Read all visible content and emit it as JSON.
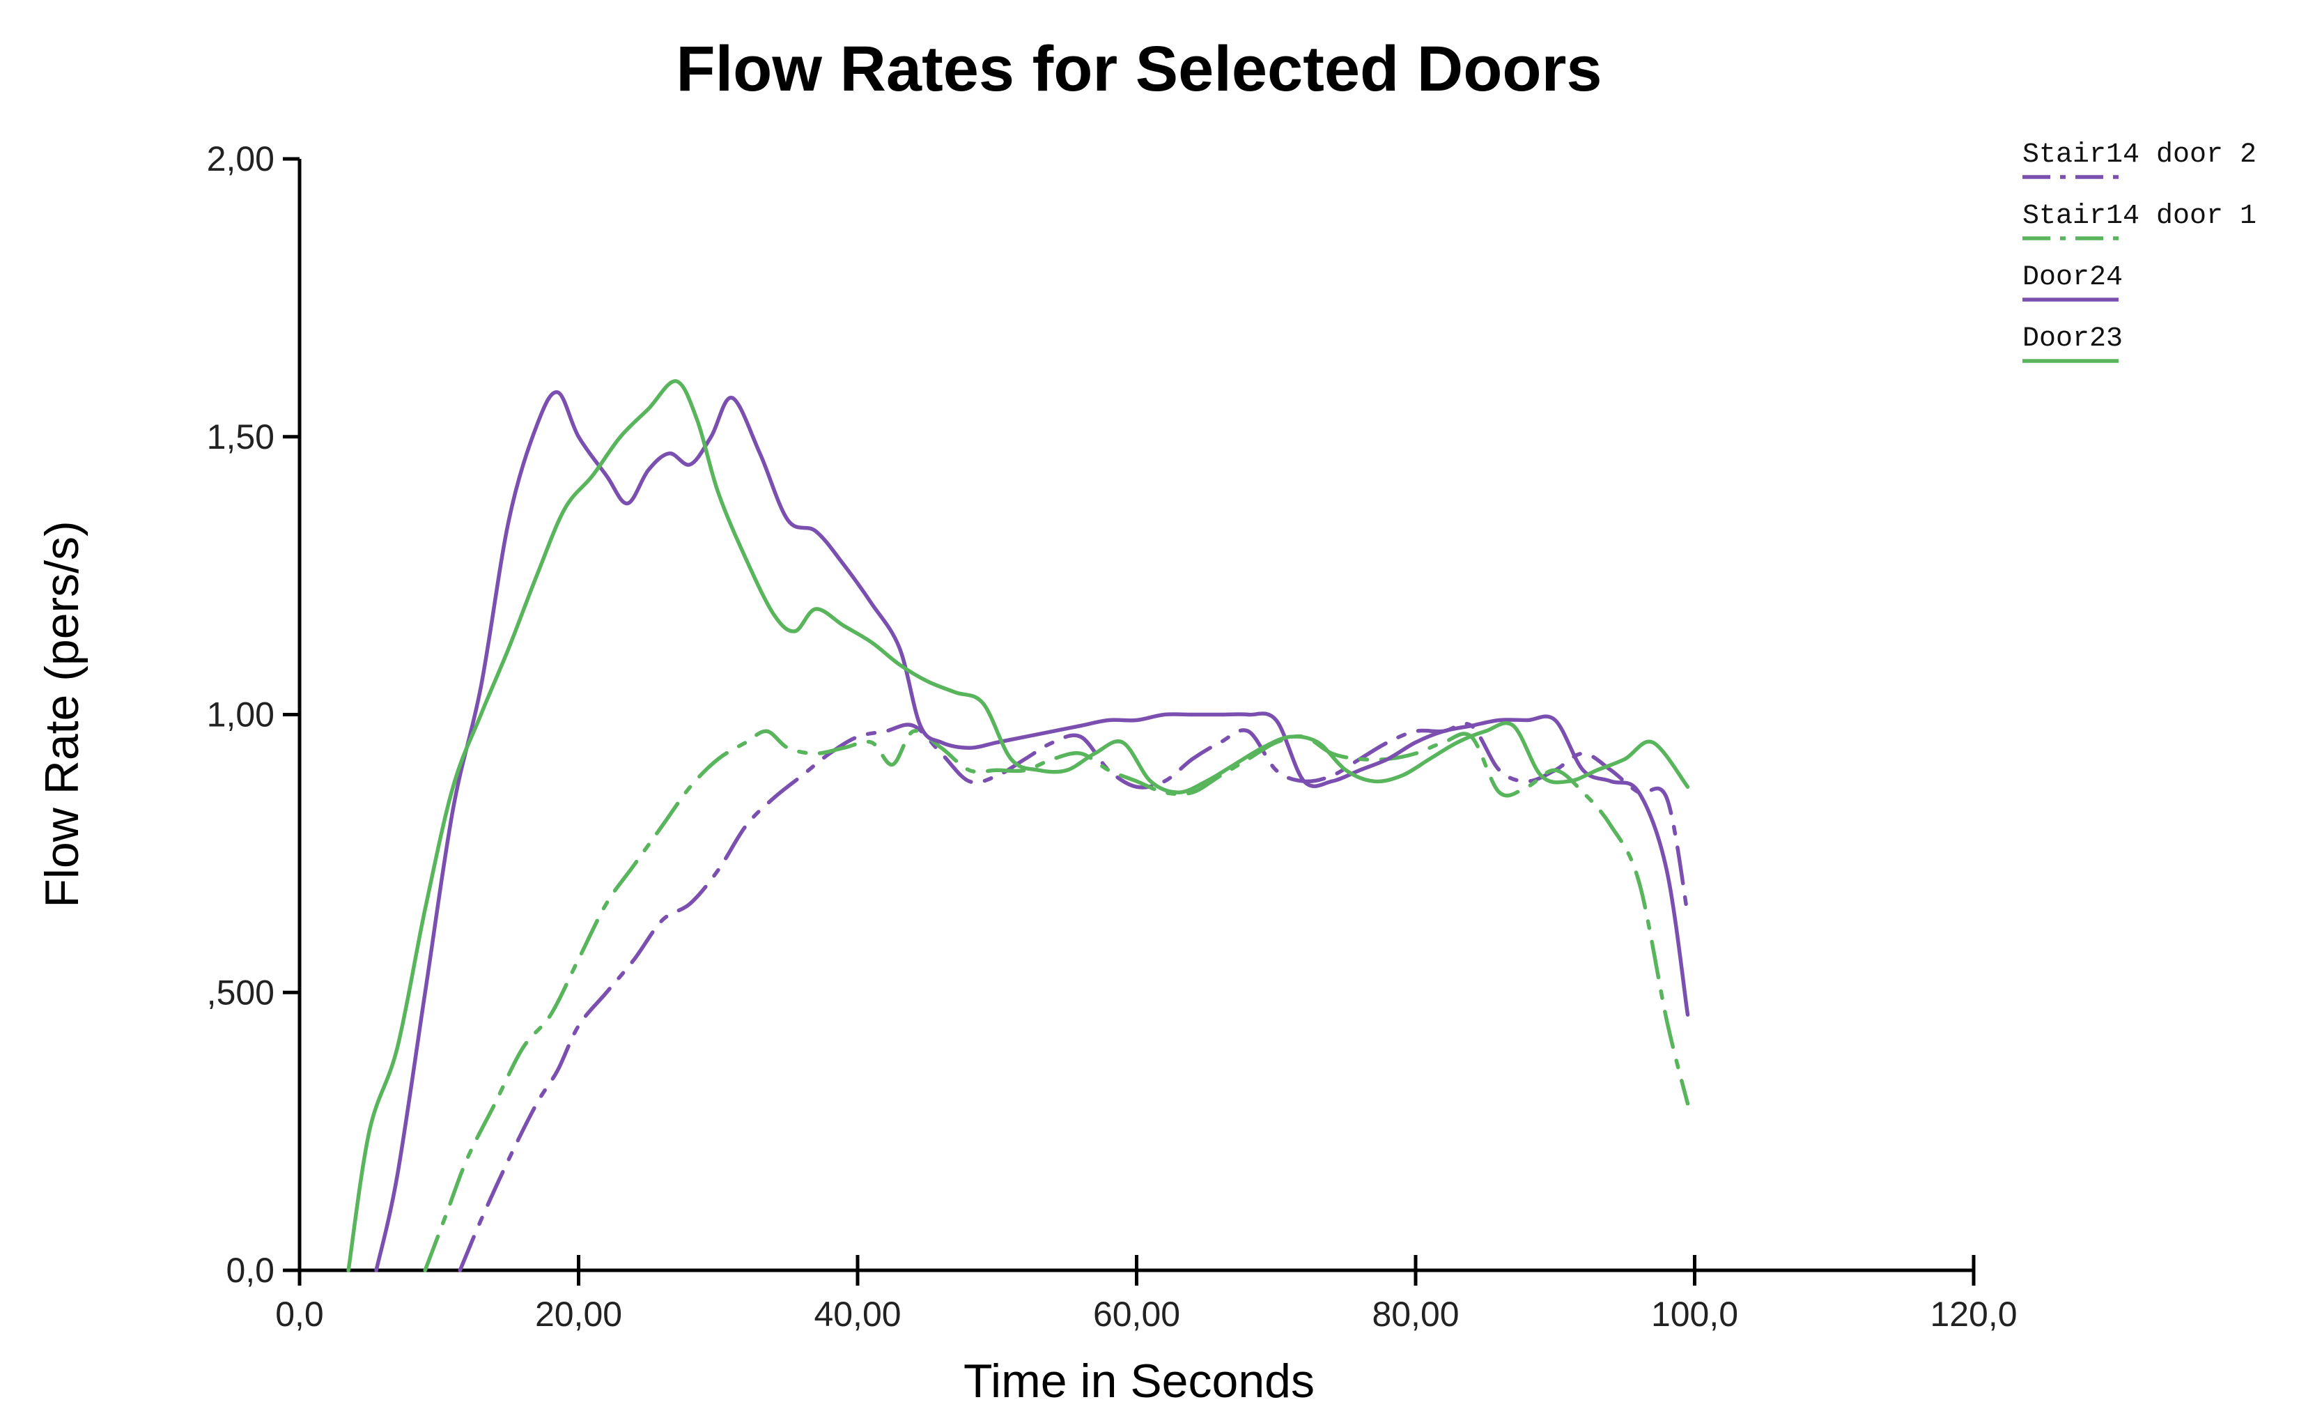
{
  "chart_data": {
    "type": "line",
    "title": "Flow Rates for Selected Doors",
    "xlabel": "Time in Seconds",
    "ylabel": "Flow Rate (pers/s)",
    "xlim": [
      0,
      120
    ],
    "ylim": [
      0,
      2
    ],
    "xticks": [
      0,
      20,
      40,
      60,
      80,
      100,
      120
    ],
    "xtick_labels": [
      "0,0",
      "20,00",
      "40,00",
      "60,00",
      "80,00",
      "100,0",
      "120,0"
    ],
    "yticks": [
      0,
      0.5,
      1.0,
      1.5,
      2.0
    ],
    "ytick_labels": [
      "0,0",
      ",500",
      "1,00",
      "1,50",
      "2,00"
    ],
    "grid": false,
    "legend_position": "top-right",
    "colors": {
      "purple": "#7a4fb0",
      "green": "#58b55c"
    },
    "series": [
      {
        "name": "Stair14 door 2",
        "color": "#7a4fb0",
        "dash": "dashdot",
        "x": [
          11.5,
          13,
          15,
          17,
          18.5,
          20,
          22,
          24,
          26,
          28,
          30,
          32,
          34,
          36,
          38,
          40,
          42,
          44,
          46,
          48,
          50,
          52,
          54,
          56,
          58,
          60,
          62,
          64,
          66,
          68,
          70,
          72,
          74,
          76,
          78,
          80,
          82,
          84,
          86,
          88,
          90,
          92,
          94,
          96,
          98,
          99.5
        ],
        "y": [
          0.0,
          0.09,
          0.2,
          0.3,
          0.36,
          0.44,
          0.5,
          0.56,
          0.63,
          0.66,
          0.72,
          0.8,
          0.85,
          0.89,
          0.93,
          0.96,
          0.97,
          0.98,
          0.93,
          0.88,
          0.89,
          0.92,
          0.95,
          0.96,
          0.9,
          0.87,
          0.88,
          0.92,
          0.95,
          0.97,
          0.9,
          0.88,
          0.89,
          0.92,
          0.95,
          0.97,
          0.97,
          0.98,
          0.9,
          0.88,
          0.9,
          0.93,
          0.9,
          0.86,
          0.85,
          0.64
        ]
      },
      {
        "name": "Stair14 door 1",
        "color": "#58b55c",
        "dash": "dashdot",
        "x": [
          9,
          10.5,
          12,
          14,
          16,
          18,
          20,
          22,
          24,
          26,
          28,
          30,
          32,
          33.5,
          35,
          37,
          39,
          41,
          42.5,
          44,
          46,
          48,
          50,
          52,
          54,
          56,
          58,
          60,
          62,
          64,
          66,
          68,
          70,
          72,
          74,
          76,
          78,
          80,
          82,
          84,
          86,
          88,
          90,
          92,
          94,
          96,
          98,
          99.5
        ],
        "y": [
          0.0,
          0.1,
          0.2,
          0.3,
          0.4,
          0.46,
          0.56,
          0.66,
          0.73,
          0.8,
          0.87,
          0.92,
          0.95,
          0.97,
          0.94,
          0.93,
          0.94,
          0.95,
          0.91,
          0.97,
          0.94,
          0.9,
          0.9,
          0.9,
          0.92,
          0.93,
          0.9,
          0.88,
          0.86,
          0.86,
          0.89,
          0.92,
          0.95,
          0.96,
          0.93,
          0.92,
          0.92,
          0.93,
          0.95,
          0.96,
          0.86,
          0.87,
          0.9,
          0.86,
          0.8,
          0.7,
          0.45,
          0.3
        ]
      },
      {
        "name": "Door24",
        "color": "#7a4fb0",
        "dash": "solid",
        "x": [
          5.5,
          7,
          9,
          11,
          13,
          15,
          17,
          18.5,
          20,
          22,
          23.5,
          25,
          26.5,
          28,
          29.5,
          31,
          33,
          35,
          37,
          39,
          41,
          43,
          44.5,
          46,
          48,
          50,
          52,
          54,
          56,
          58,
          60,
          62,
          64,
          66,
          68,
          70,
          72,
          74,
          76,
          78,
          80,
          82,
          84,
          86,
          88,
          90,
          92,
          94,
          96,
          98,
          99.5
        ],
        "y": [
          0.0,
          0.17,
          0.5,
          0.83,
          1.05,
          1.35,
          1.52,
          1.58,
          1.5,
          1.43,
          1.38,
          1.44,
          1.47,
          1.45,
          1.5,
          1.57,
          1.47,
          1.35,
          1.33,
          1.27,
          1.2,
          1.12,
          0.98,
          0.95,
          0.94,
          0.95,
          0.96,
          0.97,
          0.98,
          0.99,
          0.99,
          1.0,
          1.0,
          1.0,
          1.0,
          0.99,
          0.88,
          0.88,
          0.9,
          0.92,
          0.95,
          0.97,
          0.98,
          0.99,
          0.99,
          0.99,
          0.9,
          0.88,
          0.86,
          0.72,
          0.46
        ]
      },
      {
        "name": "Door23",
        "color": "#58b55c",
        "dash": "solid",
        "x": [
          3.5,
          5,
          7,
          9,
          11,
          13,
          15,
          17,
          19,
          21,
          23,
          25,
          27,
          28.5,
          30,
          32,
          34,
          35.5,
          37,
          39,
          41,
          43,
          45,
          47,
          49,
          51,
          53,
          55,
          57,
          59,
          61,
          63,
          65,
          67,
          69,
          71,
          73,
          75,
          77,
          79,
          81,
          83,
          85,
          87,
          89,
          91,
          93,
          95,
          97,
          99.5
        ],
        "y": [
          0.0,
          0.25,
          0.4,
          0.65,
          0.87,
          1.0,
          1.12,
          1.25,
          1.37,
          1.43,
          1.5,
          1.55,
          1.6,
          1.53,
          1.4,
          1.28,
          1.18,
          1.15,
          1.19,
          1.16,
          1.13,
          1.09,
          1.06,
          1.04,
          1.02,
          0.92,
          0.9,
          0.9,
          0.93,
          0.95,
          0.88,
          0.86,
          0.88,
          0.91,
          0.94,
          0.96,
          0.95,
          0.9,
          0.88,
          0.89,
          0.92,
          0.95,
          0.97,
          0.98,
          0.89,
          0.88,
          0.9,
          0.92,
          0.95,
          0.87
        ]
      }
    ]
  }
}
